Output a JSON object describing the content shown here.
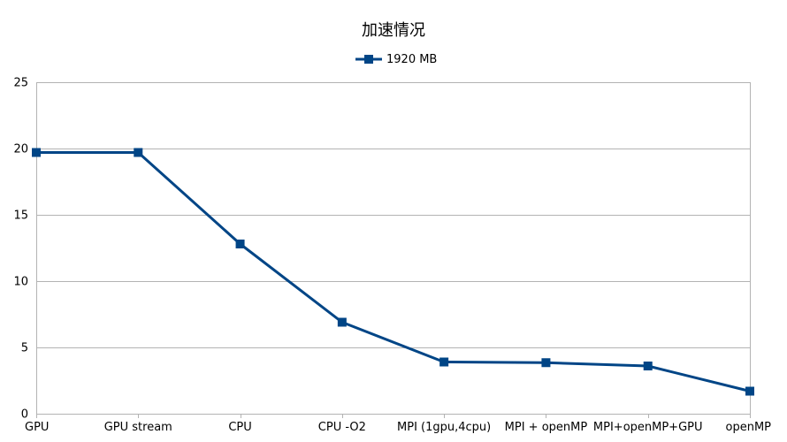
{
  "chart_data": {
    "type": "line",
    "title": "加速情况",
    "xlabel": "",
    "ylabel": "",
    "categories": [
      "GPU",
      "GPU stream",
      "CPU",
      "CPU -O2",
      "MPI (1gpu,4cpu)",
      "MPI + openMP",
      "MPI+openMP+GPU",
      "openMP"
    ],
    "series": [
      {
        "name": "1920 MB",
        "values": [
          19.7,
          19.7,
          12.8,
          6.9,
          3.9,
          3.85,
          3.6,
          1.7
        ],
        "color": "#004586"
      }
    ],
    "ylim": [
      0,
      25
    ],
    "yticks": [
      0,
      5,
      10,
      15,
      20,
      25
    ],
    "grid": "horizontal",
    "legend": "top-center",
    "marker": "square"
  }
}
